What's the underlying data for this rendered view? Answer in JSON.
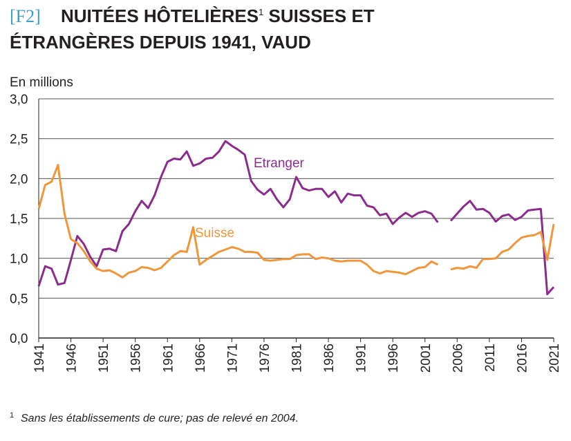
{
  "chart_data": {
    "type": "line",
    "figure_label": "[F2]",
    "title_parts": [
      "NUITÉES HÔTELIÈRES",
      "1",
      " SUISSES ET",
      "ÉTRANGÈRES DEPUIS 1941, VAUD"
    ],
    "y_label": "En millions",
    "footnote_mark": "1",
    "footnote": "Sans les établissements de cure; pas de relevé en 2004.",
    "x": [
      1941,
      1942,
      1943,
      1944,
      1945,
      1946,
      1947,
      1948,
      1949,
      1950,
      1951,
      1952,
      1953,
      1954,
      1955,
      1956,
      1957,
      1958,
      1959,
      1960,
      1961,
      1962,
      1963,
      1964,
      1965,
      1966,
      1967,
      1968,
      1969,
      1970,
      1971,
      1972,
      1973,
      1974,
      1975,
      1976,
      1977,
      1978,
      1979,
      1980,
      1981,
      1982,
      1983,
      1984,
      1985,
      1986,
      1987,
      1988,
      1989,
      1990,
      1991,
      1992,
      1993,
      1994,
      1995,
      1996,
      1997,
      1998,
      1999,
      2000,
      2001,
      2002,
      2003,
      2004,
      2005,
      2006,
      2007,
      2008,
      2009,
      2010,
      2011,
      2012,
      2013,
      2014,
      2015,
      2016,
      2017,
      2018,
      2019,
      2020,
      2021
    ],
    "xlim": [
      1941,
      2021
    ],
    "xticks": [
      1941,
      1946,
      1951,
      1956,
      1961,
      1966,
      1971,
      1976,
      1981,
      1986,
      1991,
      1996,
      2001,
      2006,
      2011,
      2016,
      2021
    ],
    "ylim": [
      0,
      3
    ],
    "yticks": [
      {
        "value": 0,
        "label": "0,0"
      },
      {
        "value": 0.5,
        "label": "0,5"
      },
      {
        "value": 1,
        "label": "1,0"
      },
      {
        "value": 1.5,
        "label": "1,5"
      },
      {
        "value": 2,
        "label": "2,0"
      },
      {
        "value": 2.5,
        "label": "2,5"
      },
      {
        "value": 3,
        "label": "3,0"
      }
    ],
    "grid": true,
    "series": [
      {
        "name": "Etranger",
        "color": "#8b2c8d",
        "values": [
          0.65,
          0.9,
          0.87,
          0.67,
          0.69,
          0.98,
          1.28,
          1.18,
          1.02,
          0.9,
          1.11,
          1.12,
          1.09,
          1.34,
          1.43,
          1.59,
          1.72,
          1.63,
          1.79,
          2.02,
          2.21,
          2.25,
          2.24,
          2.34,
          2.16,
          2.19,
          2.25,
          2.26,
          2.34,
          2.47,
          2.41,
          2.36,
          2.3,
          1.97,
          1.86,
          1.8,
          1.87,
          1.74,
          1.64,
          1.74,
          2.02,
          1.88,
          1.85,
          1.87,
          1.87,
          1.77,
          1.84,
          1.7,
          1.81,
          1.79,
          1.79,
          1.66,
          1.64,
          1.54,
          1.56,
          1.43,
          1.51,
          1.57,
          1.52,
          1.57,
          1.59,
          1.56,
          1.45,
          null,
          1.47,
          1.56,
          1.65,
          1.72,
          1.61,
          1.62,
          1.57,
          1.46,
          1.53,
          1.55,
          1.48,
          1.52,
          1.6,
          1.61,
          1.62,
          0.55,
          0.64
        ]
      },
      {
        "name": "Suisse",
        "color": "#f0963a",
        "values": [
          1.62,
          1.92,
          1.96,
          2.17,
          1.56,
          1.24,
          1.19,
          1.09,
          0.96,
          0.87,
          0.84,
          0.85,
          0.81,
          0.76,
          0.82,
          0.84,
          0.89,
          0.88,
          0.85,
          0.88,
          0.96,
          1.04,
          1.09,
          1.08,
          1.39,
          0.92,
          0.98,
          1.03,
          1.08,
          1.11,
          1.14,
          1.12,
          1.08,
          1.08,
          1.07,
          0.98,
          0.97,
          0.98,
          0.99,
          0.99,
          1.04,
          1.05,
          1.05,
          0.99,
          1.01,
          1.0,
          0.97,
          0.96,
          0.97,
          0.97,
          0.97,
          0.92,
          0.84,
          0.81,
          0.84,
          0.83,
          0.82,
          0.8,
          0.84,
          0.88,
          0.89,
          0.96,
          0.92,
          null,
          0.86,
          0.88,
          0.87,
          0.9,
          0.88,
          0.99,
          0.99,
          1.0,
          1.08,
          1.11,
          1.19,
          1.26,
          1.28,
          1.29,
          1.33,
          0.98,
          1.43
        ]
      }
    ]
  }
}
